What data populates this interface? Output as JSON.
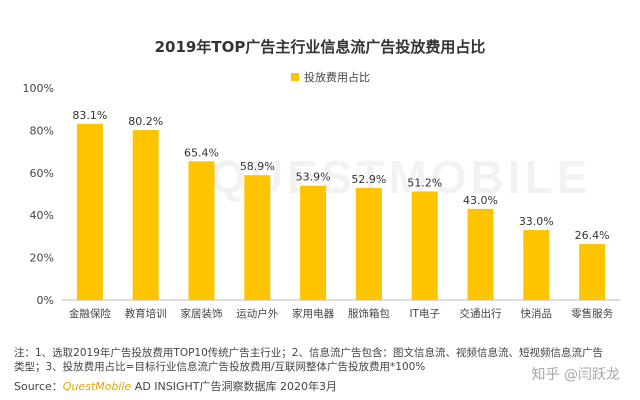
{
  "chart_data": {
    "type": "bar",
    "title": "2019年TOP广告主行业信息流广告投放费用占比",
    "legend": "投放费用占比",
    "legend_position": "top-center",
    "categories": [
      "金融保险",
      "教育培训",
      "家居装饰",
      "运动户外",
      "家用电器",
      "服饰箱包",
      "IT电子",
      "交通出行",
      "快消品",
      "零售服务"
    ],
    "values": [
      83.1,
      80.2,
      65.4,
      58.9,
      53.9,
      52.9,
      51.2,
      43.0,
      33.0,
      26.4
    ],
    "value_labels": [
      "83.1%",
      "80.2%",
      "65.4%",
      "58.9%",
      "53.9%",
      "52.9%",
      "51.2%",
      "43.0%",
      "33.0%",
      "26.4%"
    ],
    "yticks": [
      "0%",
      "20%",
      "40%",
      "60%",
      "80%",
      "100%"
    ],
    "ylim": [
      0,
      100
    ],
    "grid": false,
    "bar_color": "#FFC400"
  },
  "watermark": "QUESTMOBILE",
  "notes": {
    "line1": "注：1、选取2019年广告投放费用TOP10传统广告主行业；2、信息流广告包含：图文信息流、视频信息流、短视频信息流广告",
    "line2": "类型；3、投放费用占比=目标行业信息流广告投放费用/互联网整体广告投放费用*100%"
  },
  "source": {
    "prefix": "Source：",
    "brand": "QuestMobile",
    "rest": " AD INSIGHT广告洞察数据库 2020年3月"
  },
  "zhihu": "知乎 @闫跃龙"
}
